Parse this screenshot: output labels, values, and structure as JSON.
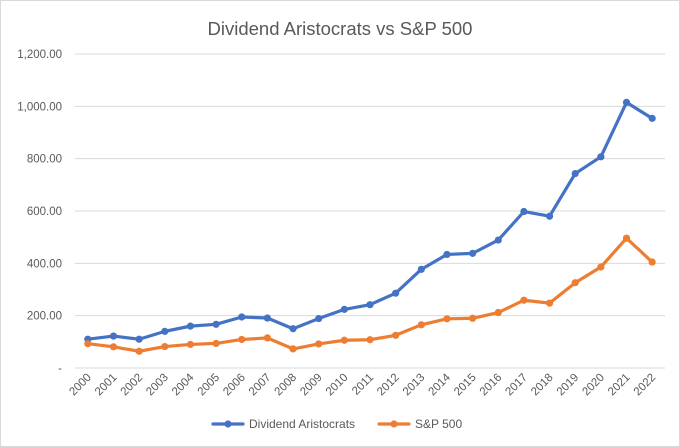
{
  "chart_data": {
    "type": "line",
    "title": "Dividend Aristocrats vs S&P 500",
    "xlabel": "",
    "ylabel": "",
    "categories": [
      "2000",
      "2001",
      "2002",
      "2003",
      "2004",
      "2005",
      "2006",
      "2007",
      "2008",
      "2009",
      "2010",
      "2011",
      "2012",
      "2013",
      "2014",
      "2015",
      "2016",
      "2017",
      "2018",
      "2019",
      "2020",
      "2021",
      "2022"
    ],
    "ylim": [
      0,
      1200
    ],
    "yticks": [
      {
        "value": 0,
        "label": "-"
      },
      {
        "value": 200,
        "label": "200.00"
      },
      {
        "value": 400,
        "label": "400.00"
      },
      {
        "value": 600,
        "label": "600.00"
      },
      {
        "value": 800,
        "label": "800.00"
      },
      {
        "value": 1000,
        "label": "1,000.00"
      },
      {
        "value": 1200,
        "label": "1,200.00"
      }
    ],
    "grid": true,
    "legend_position": "bottom",
    "series": [
      {
        "name": "Dividend  Aristocrats",
        "color": "#4472c4",
        "values": [
          110,
          122,
          110,
          140,
          160,
          167,
          195,
          191,
          150,
          189,
          224,
          242,
          286,
          377,
          434,
          438,
          489,
          598,
          580,
          743,
          807,
          1015,
          954
        ]
      },
      {
        "name": "S&P 500",
        "color": "#ed7d31",
        "values": [
          93,
          81,
          64,
          82,
          90,
          94,
          109,
          115,
          73,
          92,
          106,
          108,
          125,
          165,
          188,
          190,
          212,
          259,
          248,
          326,
          386,
          496,
          405
        ]
      }
    ]
  }
}
